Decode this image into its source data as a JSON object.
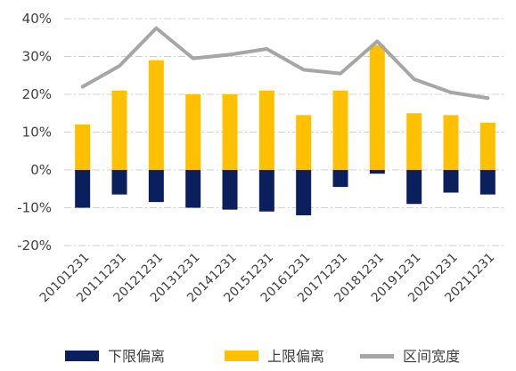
{
  "chart_data": {
    "type": "bar",
    "categories": [
      "20101231",
      "20111231",
      "20121231",
      "20131231",
      "20141231",
      "20151231",
      "20161231",
      "20171231",
      "20181231",
      "20191231",
      "20201231",
      "20211231"
    ],
    "series": [
      {
        "name": "下限偏离",
        "type": "bar",
        "color": "#0b1f5c",
        "values": [
          -10,
          -6.5,
          -8.5,
          -10,
          -10.5,
          -11,
          -12,
          -4.5,
          -1,
          -9,
          -6,
          -6.5
        ]
      },
      {
        "name": "上限偏离",
        "type": "bar",
        "color": "#ffc000",
        "values": [
          12,
          21,
          29,
          20,
          20,
          21,
          14.5,
          21,
          33,
          15,
          14.5,
          12.5
        ]
      },
      {
        "name": "区间宽度",
        "type": "line",
        "color": "#a6a6a6",
        "values": [
          22,
          27.5,
          37.5,
          29.5,
          30.5,
          32,
          26.5,
          25.5,
          34,
          24,
          20.5,
          19
        ]
      }
    ],
    "ylim": [
      -20,
      40
    ],
    "yticks": [
      -20,
      -10,
      0,
      10,
      20,
      30,
      40
    ],
    "ytick_labels": [
      "-20%",
      "-10%",
      "0%",
      "10%",
      "20%",
      "30%",
      "40%"
    ],
    "grid": true,
    "legend_position": "bottom",
    "title": "",
    "xlabel": "",
    "ylabel": ""
  }
}
